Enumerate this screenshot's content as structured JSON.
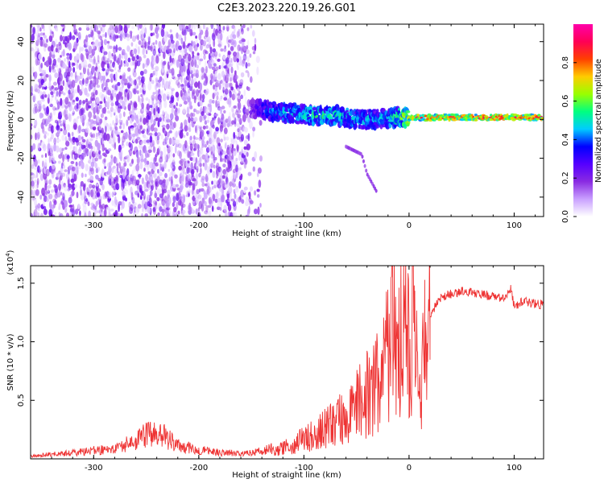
{
  "figure": {
    "title": "C2E3.2023.220.19.26.G01"
  },
  "chart_data": [
    {
      "type": "heatmap",
      "title": "C2E3.2023.220.19.26.G01",
      "xlabel": "Height of straight line (km)",
      "ylabel": "Frequency (Hz)",
      "xlim": [
        -360,
        128
      ],
      "ylim": [
        -50,
        49
      ],
      "xticks": [
        -300,
        -200,
        -100,
        0,
        100
      ],
      "xtick_labels": [
        "-300",
        "-200",
        "-100",
        "0",
        "100"
      ],
      "yticks": [
        -40,
        -20,
        0,
        20,
        40
      ],
      "ytick_labels": [
        "-40",
        "-20",
        "0",
        "20",
        "40"
      ],
      "colorbar": {
        "label": "Normalized spectral amplitude",
        "range": [
          0,
          1
        ],
        "ticks": [
          0.0,
          0.2,
          0.4,
          0.6,
          0.8
        ],
        "tick_labels": [
          "0.0",
          "0.2",
          "0.4",
          "0.6",
          "0.8"
        ],
        "colormap": [
          "#ffffff",
          "#c9a0ff",
          "#8a2be2",
          "#5500ff",
          "#0000ff",
          "#00ccff",
          "#00ff80",
          "#99ff00",
          "#ffcc00",
          "#ff4000",
          "#ff0055",
          "#ff00aa"
        ]
      },
      "features": {
        "noise_region_x": [
          -360,
          -140
        ],
        "noise_amplitude": 0.12,
        "noise_freq_range": [
          -50,
          49
        ],
        "signal_track": [
          {
            "x": -150,
            "f": 6,
            "amp": 0.25
          },
          {
            "x": -130,
            "f": 4,
            "amp": 0.45
          },
          {
            "x": -110,
            "f": 3,
            "amp": 0.5
          },
          {
            "x": -90,
            "f": 2,
            "amp": 0.55
          },
          {
            "x": -70,
            "f": 2,
            "amp": 0.55
          },
          {
            "x": -50,
            "f": 0,
            "amp": 0.5
          },
          {
            "x": -30,
            "f": 0,
            "amp": 0.45
          },
          {
            "x": -10,
            "f": 1,
            "amp": 0.6
          },
          {
            "x": 10,
            "f": 1,
            "amp": 0.85
          },
          {
            "x": 40,
            "f": 1,
            "amp": 0.88
          },
          {
            "x": 70,
            "f": 1,
            "amp": 0.9
          },
          {
            "x": 100,
            "f": 1,
            "amp": 0.9
          },
          {
            "x": 128,
            "f": 1,
            "amp": 0.88
          }
        ],
        "secondary_track": [
          {
            "x": -60,
            "f": -14
          },
          {
            "x": -45,
            "f": -18
          },
          {
            "x": -40,
            "f": -28
          },
          {
            "x": -30,
            "f": -38
          }
        ],
        "background_color": "#ffffff"
      }
    },
    {
      "type": "line",
      "title": "",
      "xlabel": "Height of straight line (km)",
      "ylabel": "SNR (10 * v/v)",
      "y_multiplier": "(x10",
      "y_multiplier_exp": "4",
      "y_multiplier_close": ")",
      "xlim": [
        -360,
        128
      ],
      "ylim": [
        0,
        1.65
      ],
      "xticks": [
        -300,
        -200,
        -100,
        0,
        100
      ],
      "xtick_labels": [
        "-300",
        "-200",
        "-100",
        "0",
        "100"
      ],
      "yticks": [
        0.5,
        1.0,
        1.5
      ],
      "ytick_labels": [
        "0.5",
        "1.0",
        "1.5"
      ],
      "line_color": "#ee3333",
      "series": [
        {
          "x": [
            -360,
            -320,
            -280,
            -260,
            -245,
            -235,
            -220,
            -200,
            -180,
            -160,
            -140,
            -125,
            -110,
            -100,
            -90,
            -80,
            -70,
            -60,
            -50,
            -40,
            -30,
            -22,
            -18,
            -15,
            -12,
            -10,
            -5,
            0,
            5,
            10,
            15,
            20,
            25,
            30,
            40,
            50,
            60,
            70,
            80,
            90,
            97,
            100,
            110,
            120,
            128
          ],
          "y": [
            0.02,
            0.04,
            0.07,
            0.12,
            0.18,
            0.16,
            0.09,
            0.06,
            0.04,
            0.04,
            0.05,
            0.08,
            0.13,
            0.18,
            0.22,
            0.28,
            0.33,
            0.38,
            0.48,
            0.6,
            0.72,
            0.9,
            1.05,
            1.55,
            0.7,
            1.05,
            1.15,
            1.1,
            1.2,
            0.45,
            1.0,
            1.2,
            1.3,
            1.37,
            1.41,
            1.43,
            1.42,
            1.41,
            1.38,
            1.37,
            1.45,
            1.3,
            1.35,
            1.32,
            1.32
          ]
        }
      ]
    }
  ]
}
